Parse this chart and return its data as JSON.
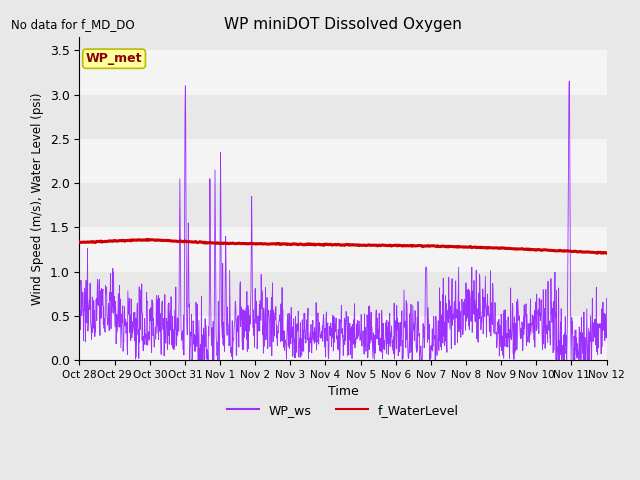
{
  "title": "WP miniDOT Dissolved Oxygen",
  "no_data_text": "No data for f_MD_DO",
  "wp_met_label": "WP_met",
  "ylabel": "Wind Speed (m/s), Water Level (psi)",
  "xlabel": "Time",
  "ylim": [
    0.0,
    3.65
  ],
  "yticks": [
    0.0,
    0.5,
    1.0,
    1.5,
    2.0,
    2.5,
    3.0,
    3.5
  ],
  "bg_color": "#e8e8e8",
  "white_band_alpha": 0.55,
  "ws_color": "#9B30FF",
  "wl_color": "#CC0000",
  "legend_ws": "WP_ws",
  "legend_wl": "f_WaterLevel",
  "tick_labels": [
    "Oct 28",
    "Oct 29",
    "Oct 30",
    "Oct 31",
    "Nov 1",
    "Nov 2",
    "Nov 3",
    "Nov 4",
    "Nov 5",
    "Nov 6",
    "Nov 7",
    "Nov 8",
    "Nov 9",
    "Nov 10",
    "Nov 11",
    "Nov 12"
  ],
  "tick_positions": [
    0,
    1,
    2,
    3,
    4,
    5,
    6,
    7,
    8,
    9,
    10,
    11,
    12,
    13,
    14,
    15
  ],
  "xlim": [
    0,
    15
  ]
}
